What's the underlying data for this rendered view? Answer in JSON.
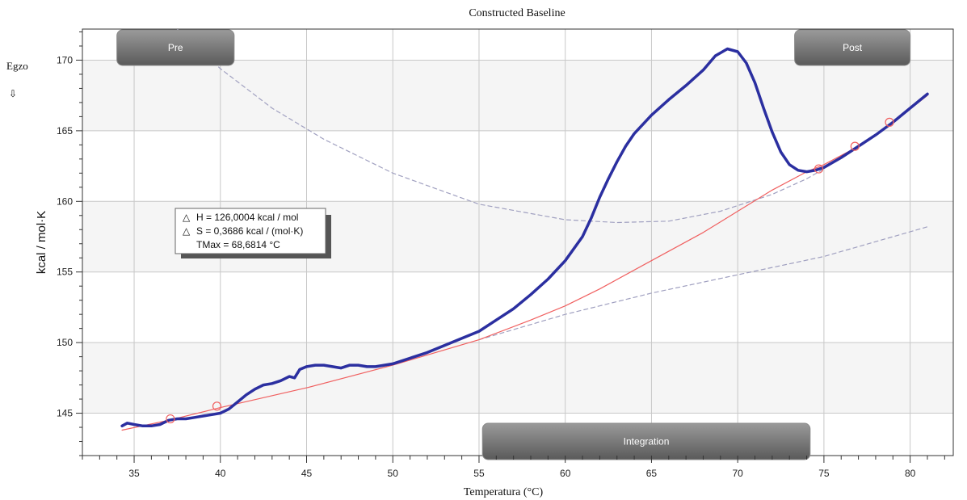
{
  "chart_data": {
    "type": "line",
    "title": "Constructed Baseline",
    "xlabel": "Temperatura (°C)",
    "ylabel": "kcal / mol·K",
    "xlim": [
      32,
      82.5
    ],
    "ylim": [
      142,
      172.2
    ],
    "x_ticks": [
      35,
      40,
      45,
      50,
      55,
      60,
      65,
      70,
      75,
      80
    ],
    "y_ticks": [
      145,
      150,
      155,
      160,
      165,
      170
    ],
    "grid": true,
    "banding": "alternating horizontal bands",
    "series": [
      {
        "role": "measured",
        "color": "#2b2fa0",
        "points": [
          [
            34.3,
            144.1
          ],
          [
            34.6,
            144.3
          ],
          [
            35.0,
            144.2
          ],
          [
            35.5,
            144.1
          ],
          [
            36.0,
            144.1
          ],
          [
            36.5,
            144.2
          ],
          [
            37.0,
            144.5
          ],
          [
            37.5,
            144.6
          ],
          [
            38.0,
            144.6
          ],
          [
            38.5,
            144.7
          ],
          [
            39.0,
            144.8
          ],
          [
            39.5,
            144.9
          ],
          [
            40.0,
            145.0
          ],
          [
            40.5,
            145.3
          ],
          [
            41.0,
            145.8
          ],
          [
            41.5,
            146.3
          ],
          [
            42.0,
            146.7
          ],
          [
            42.5,
            147.0
          ],
          [
            43.0,
            147.1
          ],
          [
            43.5,
            147.3
          ],
          [
            44.0,
            147.6
          ],
          [
            44.3,
            147.5
          ],
          [
            44.6,
            148.1
          ],
          [
            45.0,
            148.3
          ],
          [
            45.5,
            148.4
          ],
          [
            46.0,
            148.4
          ],
          [
            46.5,
            148.3
          ],
          [
            47.0,
            148.2
          ],
          [
            47.5,
            148.4
          ],
          [
            48.0,
            148.4
          ],
          [
            48.5,
            148.3
          ],
          [
            49.0,
            148.3
          ],
          [
            49.5,
            148.4
          ],
          [
            50.0,
            148.5
          ],
          [
            51.0,
            148.9
          ],
          [
            52.0,
            149.3
          ],
          [
            53.0,
            149.8
          ],
          [
            54.0,
            150.3
          ],
          [
            55.0,
            150.8
          ],
          [
            56.0,
            151.6
          ],
          [
            57.0,
            152.4
          ],
          [
            58.0,
            153.4
          ],
          [
            59.0,
            154.5
          ],
          [
            60.0,
            155.8
          ],
          [
            61.0,
            157.5
          ],
          [
            61.5,
            158.8
          ],
          [
            62.0,
            160.3
          ],
          [
            62.5,
            161.6
          ],
          [
            63.0,
            162.8
          ],
          [
            63.5,
            163.9
          ],
          [
            64.0,
            164.8
          ],
          [
            65.0,
            166.1
          ],
          [
            66.0,
            167.2
          ],
          [
            67.0,
            168.2
          ],
          [
            68.0,
            169.3
          ],
          [
            68.7,
            170.3
          ],
          [
            69.4,
            170.8
          ],
          [
            70.0,
            170.6
          ],
          [
            70.5,
            169.8
          ],
          [
            71.0,
            168.4
          ],
          [
            71.5,
            166.6
          ],
          [
            72.0,
            164.9
          ],
          [
            72.5,
            163.5
          ],
          [
            73.0,
            162.6
          ],
          [
            73.5,
            162.2
          ],
          [
            74.0,
            162.1
          ],
          [
            74.5,
            162.2
          ],
          [
            75.0,
            162.4
          ],
          [
            76.0,
            163.1
          ],
          [
            77.0,
            163.9
          ],
          [
            78.0,
            164.7
          ],
          [
            79.0,
            165.6
          ],
          [
            80.0,
            166.6
          ],
          [
            81.0,
            167.6
          ]
        ]
      },
      {
        "role": "constructed-baseline",
        "color": "#f06060",
        "points": [
          [
            34.3,
            143.8
          ],
          [
            37.0,
            144.5
          ],
          [
            40.0,
            145.4
          ],
          [
            45.0,
            146.8
          ],
          [
            50.0,
            148.4
          ],
          [
            55.0,
            150.2
          ],
          [
            58.0,
            151.6
          ],
          [
            60.0,
            152.6
          ],
          [
            62.0,
            153.8
          ],
          [
            65.0,
            155.8
          ],
          [
            68.0,
            157.8
          ],
          [
            70.0,
            159.3
          ],
          [
            72.0,
            160.8
          ],
          [
            74.0,
            162.1
          ],
          [
            75.0,
            162.6
          ],
          [
            77.0,
            163.9
          ],
          [
            79.0,
            165.6
          ],
          [
            81.0,
            167.5
          ]
        ]
      },
      {
        "role": "post-fit-extrapolation",
        "color": "#a0a0c0",
        "style": "dashed",
        "points": [
          [
            36.8,
            173.0
          ],
          [
            40.0,
            169.4
          ],
          [
            43.0,
            166.6
          ],
          [
            46.0,
            164.4
          ],
          [
            50.0,
            162.0
          ],
          [
            55.0,
            159.8
          ],
          [
            60.0,
            158.7
          ],
          [
            63.0,
            158.5
          ],
          [
            66.0,
            158.6
          ],
          [
            69.0,
            159.3
          ],
          [
            72.0,
            160.5
          ],
          [
            74.0,
            161.6
          ],
          [
            75.0,
            162.3
          ]
        ]
      },
      {
        "role": "pre-fit-extrapolation",
        "color": "#a0a0c0",
        "style": "dashed",
        "points": [
          [
            55.0,
            150.2
          ],
          [
            60.0,
            152.0
          ],
          [
            65.0,
            153.5
          ],
          [
            70.0,
            154.8
          ],
          [
            75.0,
            156.1
          ],
          [
            81.0,
            158.2
          ]
        ]
      }
    ],
    "markers": {
      "color": "#f06060",
      "points": [
        [
          37.1,
          144.6
        ],
        [
          39.8,
          145.5
        ],
        [
          74.7,
          162.3
        ],
        [
          76.8,
          163.9
        ],
        [
          78.8,
          165.6
        ]
      ]
    },
    "range_handles": [
      {
        "label": "Pre",
        "x_start": 34.0,
        "x_end": 40.8
      },
      {
        "label": "Post",
        "x_start": 73.3,
        "x_end": 80.0
      },
      {
        "label": "Integration",
        "x_start": 55.2,
        "x_end": 74.2
      }
    ],
    "info_box": {
      "delta_symbol": "△",
      "line1": "H = 126,0004 kcal / mol",
      "line2": "S = 0,3686 kcal / (mol·K)",
      "line3": "TMax = 68,6814 °C"
    }
  },
  "side_label": {
    "text": "Egzo",
    "arrow": "⇩"
  }
}
